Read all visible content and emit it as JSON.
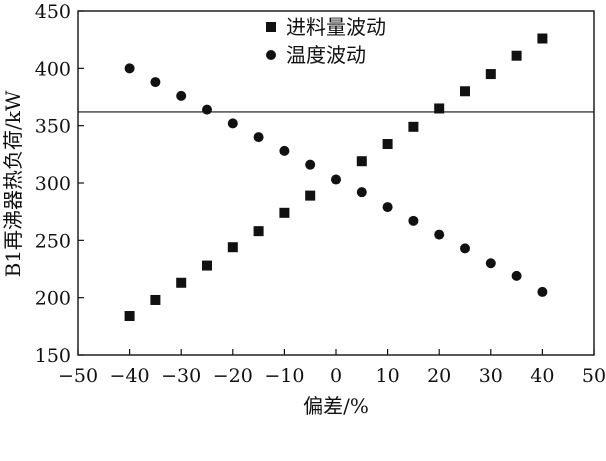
{
  "chart_data": {
    "type": "scatter",
    "title": "",
    "xlabel": "偏差/%",
    "ylabel": "B1再沸器热负荷/kW",
    "xlim": [
      -50,
      50
    ],
    "ylim": [
      150,
      450
    ],
    "xticks": [
      "−50",
      "−40",
      "−30",
      "−20",
      "−10",
      "0",
      "10",
      "20",
      "30",
      "40",
      "50"
    ],
    "yticks": [
      "150",
      "200",
      "250",
      "300",
      "350",
      "400",
      "450"
    ],
    "xtick_values": [
      -50,
      -40,
      -30,
      -20,
      -10,
      0,
      10,
      20,
      30,
      40,
      50
    ],
    "ytick_values": [
      150,
      200,
      250,
      300,
      350,
      400,
      450
    ],
    "reference_line_y": 362,
    "legend_position": "top-center",
    "grid": false,
    "series": [
      {
        "name": "进料量波动",
        "marker": "square",
        "color": "#111111",
        "points": [
          {
            "x": -40,
            "y": 184
          },
          {
            "x": -35,
            "y": 198
          },
          {
            "x": -30,
            "y": 213
          },
          {
            "x": -25,
            "y": 228
          },
          {
            "x": -20,
            "y": 244
          },
          {
            "x": -15,
            "y": 258
          },
          {
            "x": -10,
            "y": 274
          },
          {
            "x": -5,
            "y": 289
          },
          {
            "x": 5,
            "y": 319
          },
          {
            "x": 10,
            "y": 334
          },
          {
            "x": 15,
            "y": 349
          },
          {
            "x": 20,
            "y": 365
          },
          {
            "x": 25,
            "y": 380
          },
          {
            "x": 30,
            "y": 395
          },
          {
            "x": 35,
            "y": 411
          },
          {
            "x": 40,
            "y": 426
          }
        ]
      },
      {
        "name": "温度波动",
        "marker": "circle",
        "color": "#111111",
        "points": [
          {
            "x": -40,
            "y": 400
          },
          {
            "x": -35,
            "y": 388
          },
          {
            "x": -30,
            "y": 376
          },
          {
            "x": -25,
            "y": 364
          },
          {
            "x": -20,
            "y": 352
          },
          {
            "x": -15,
            "y": 340
          },
          {
            "x": -10,
            "y": 328
          },
          {
            "x": -5,
            "y": 316
          },
          {
            "x": 0,
            "y": 303
          },
          {
            "x": 5,
            "y": 292
          },
          {
            "x": 10,
            "y": 279
          },
          {
            "x": 15,
            "y": 267
          },
          {
            "x": 20,
            "y": 255
          },
          {
            "x": 25,
            "y": 243
          },
          {
            "x": 30,
            "y": 230
          },
          {
            "x": 35,
            "y": 219
          },
          {
            "x": 40,
            "y": 205
          }
        ]
      }
    ]
  }
}
